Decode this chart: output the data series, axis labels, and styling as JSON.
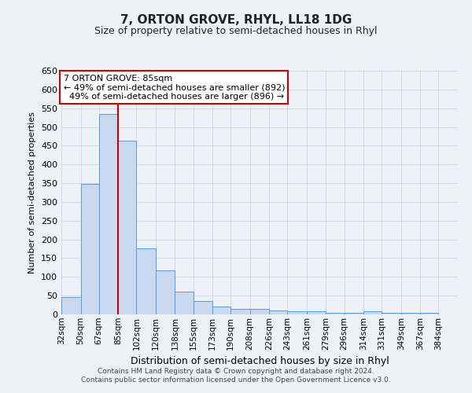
{
  "title": "7, ORTON GROVE, RHYL, LL18 1DG",
  "subtitle": "Size of property relative to semi-detached houses in Rhyl",
  "xlabel": "Distribution of semi-detached houses by size in Rhyl",
  "ylabel": "Number of semi-detached properties",
  "bin_labels": [
    "32sqm",
    "50sqm",
    "67sqm",
    "85sqm",
    "102sqm",
    "120sqm",
    "138sqm",
    "155sqm",
    "173sqm",
    "190sqm",
    "208sqm",
    "226sqm",
    "243sqm",
    "261sqm",
    "279sqm",
    "296sqm",
    "314sqm",
    "331sqm",
    "349sqm",
    "367sqm",
    "384sqm"
  ],
  "bin_edges": [
    32,
    50,
    67,
    85,
    102,
    120,
    138,
    155,
    173,
    190,
    208,
    226,
    243,
    261,
    279,
    296,
    314,
    331,
    349,
    367,
    384
  ],
  "bar_heights": [
    46,
    348,
    535,
    463,
    176,
    118,
    60,
    35,
    20,
    15,
    15,
    10,
    8,
    8,
    5,
    5,
    8,
    5,
    5,
    5
  ],
  "bar_color": "#c9d9f0",
  "bar_edge_color": "#5b9bd5",
  "property_line_x": 85,
  "property_label": "7 ORTON GROVE: 85sqm",
  "pct_smaller": 49,
  "pct_smaller_count": 892,
  "pct_larger": 49,
  "pct_larger_count": 896,
  "annotation_line_color": "#cc0000",
  "annotation_box_color": "#ffffff",
  "annotation_box_edge_color": "#cc0000",
  "ylim": [
    0,
    650
  ],
  "yticks": [
    0,
    50,
    100,
    150,
    200,
    250,
    300,
    350,
    400,
    450,
    500,
    550,
    600,
    650
  ],
  "grid_color": "#c8d0dc",
  "background_color": "#eef2f8",
  "footer_line1": "Contains HM Land Registry data © Crown copyright and database right 2024.",
  "footer_line2": "Contains public sector information licensed under the Open Government Licence v3.0."
}
